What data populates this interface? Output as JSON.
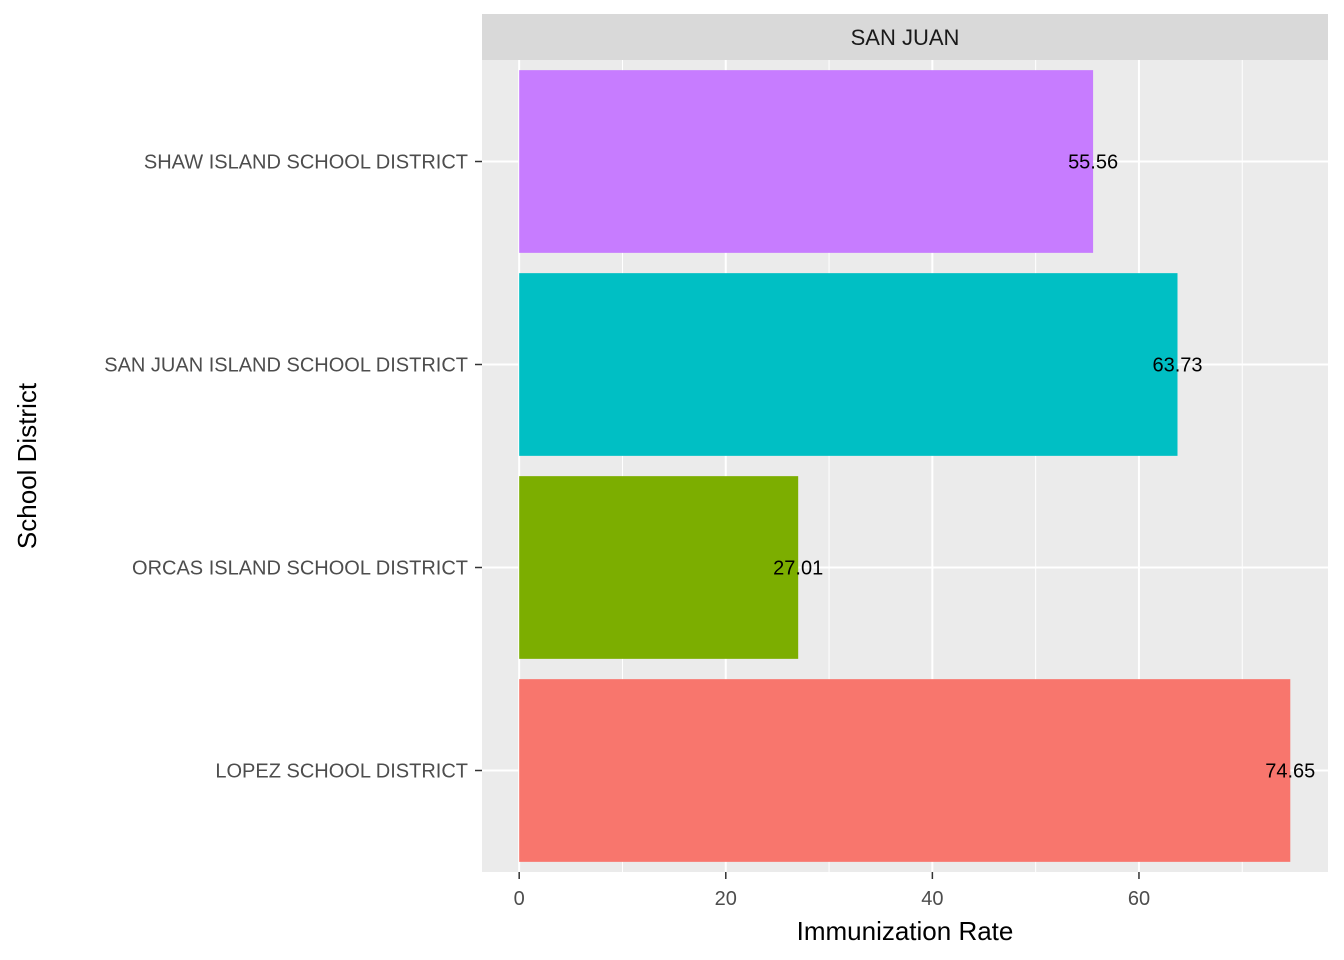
{
  "chart_data": {
    "type": "bar",
    "orientation": "horizontal",
    "facet_label": "SAN JUAN",
    "xlabel": "Immunization Rate",
    "ylabel": "School District",
    "xlim": [
      -3.6,
      78.3
    ],
    "x_ticks": [
      0,
      20,
      40,
      60
    ],
    "grid": true,
    "legend": "none",
    "categories": [
      "LOPEZ SCHOOL DISTRICT",
      "ORCAS ISLAND SCHOOL DISTRICT",
      "SAN JUAN ISLAND SCHOOL DISTRICT",
      "SHAW ISLAND SCHOOL DISTRICT"
    ],
    "values": [
      74.65,
      27.01,
      63.73,
      55.56
    ],
    "value_labels": [
      "74.65",
      "27.01",
      "63.73",
      "55.56"
    ],
    "colors": [
      "#F8766D",
      "#7CAE00",
      "#00BFC4",
      "#C77CFF"
    ]
  }
}
